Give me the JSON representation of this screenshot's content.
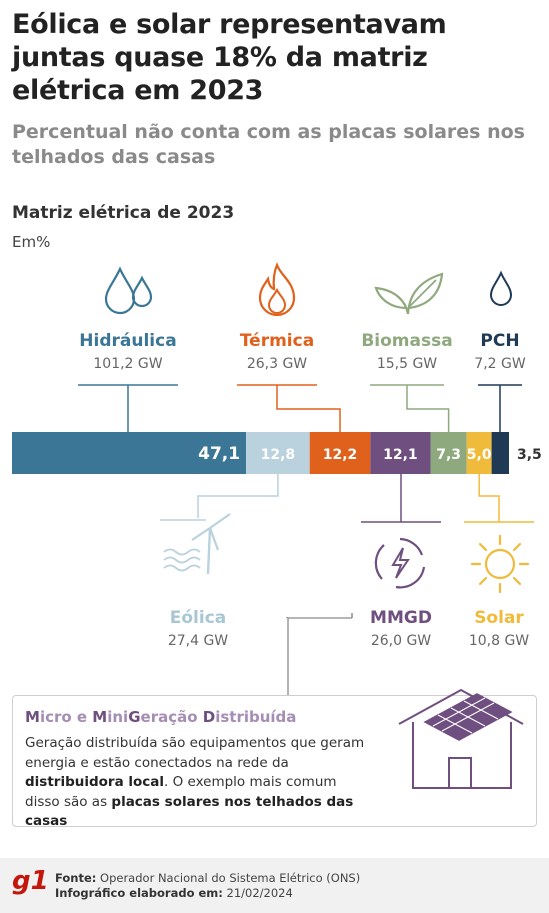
{
  "header": {
    "title": "Eólica e solar representavam juntas quase 18% da matriz elétrica em 2023",
    "subtitle": "Percentual não conta com as placas solares nos telhados das casas"
  },
  "chart_data": {
    "type": "bar",
    "orientation": "horizontal-stacked",
    "title": "Matriz elétrica de 2023",
    "unit": "Em%",
    "total": 100,
    "segments": [
      {
        "name": "Hidráulica",
        "capacity": "101,2 GW",
        "value": 47.1,
        "label": "47,1",
        "color": "#3b7696",
        "label_position": "top"
      },
      {
        "name": "Eólica",
        "capacity": "27,4 GW",
        "value": 12.8,
        "label": "12,8",
        "color": "#b9d2dd",
        "label_position": "bottom"
      },
      {
        "name": "Térmica",
        "capacity": "26,3 GW",
        "value": 12.2,
        "label": "12,2",
        "color": "#e0611b",
        "label_position": "top"
      },
      {
        "name": "MMGD",
        "capacity": "26,0 GW",
        "value": 12.1,
        "label": "12,1",
        "color": "#6e4f80",
        "label_position": "bottom"
      },
      {
        "name": "Biomassa",
        "capacity": "15,5 GW",
        "value": 7.3,
        "label": "7,3",
        "color": "#8fa97e",
        "label_position": "top"
      },
      {
        "name": "Solar",
        "capacity": "10,8 GW",
        "value": 5.0,
        "label": "5,0",
        "color": "#f0bb3a",
        "label_position": "bottom"
      },
      {
        "name": "PCH",
        "capacity": "7,2 GW",
        "value": 3.5,
        "label": "3,5",
        "color": "#1e3a55",
        "label_position": "top"
      }
    ],
    "icons": {
      "Hidráulica": "water-drops-icon",
      "Térmica": "flame-icon",
      "Biomassa": "leaves-icon",
      "PCH": "water-drop-icon",
      "Eólica": "wind-turbine-icon",
      "MMGD": "energy-cycle-icon",
      "Solar": "sun-icon"
    }
  },
  "info_box": {
    "title_parts": [
      {
        "text": "M",
        "strong": true
      },
      {
        "text": "icro e ",
        "strong": false
      },
      {
        "text": "M",
        "strong": true
      },
      {
        "text": "ini",
        "strong": false
      },
      {
        "text": "G",
        "strong": true
      },
      {
        "text": "eração ",
        "strong": false
      },
      {
        "text": "D",
        "strong": true
      },
      {
        "text": "istribuída",
        "strong": false
      }
    ],
    "text_parts": [
      {
        "text": "Geração distribuída são equipamentos que geram energia e estão conectados na rede da ",
        "bold": false
      },
      {
        "text": "distribuidora local",
        "bold": true
      },
      {
        "text": ". O exemplo mais comum disso são as ",
        "bold": false
      },
      {
        "text": "placas solares nos telhados das casas",
        "bold": true
      }
    ],
    "icon": "house-with-solar-panels-icon"
  },
  "footer": {
    "logo": "g1",
    "source_label": "Fonte:",
    "source_value": "Operador Nacional do Sistema Elétrico (ONS)",
    "date_label": "Infográfico elaborado em:",
    "date_value": "21/02/2024"
  }
}
